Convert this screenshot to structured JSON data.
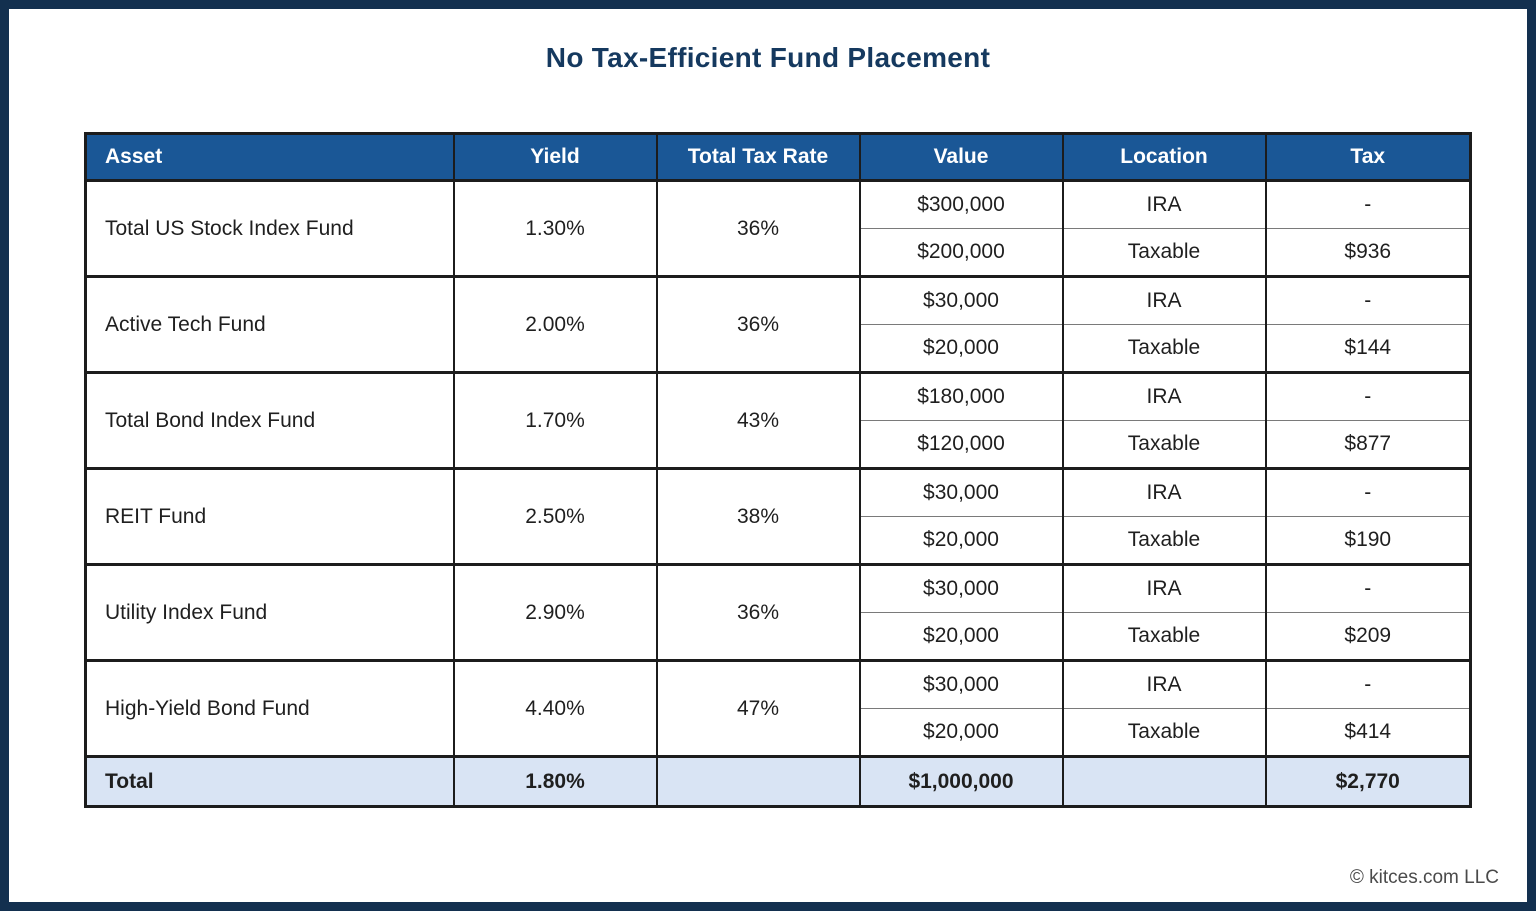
{
  "title": "No Tax-Efficient Fund Placement",
  "footer": {
    "copyright": "© kitces.com LLC"
  },
  "colors": {
    "frame_navy": "#13304F",
    "header_blue": "#1A5796",
    "total_row_bg": "#D9E4F4",
    "title_navy": "#15395F",
    "subrow_divider_gray": "#7a7a7a"
  },
  "table": {
    "headers": {
      "asset": "Asset",
      "yield": "Yield",
      "tax_rate": "Total Tax Rate",
      "value": "Value",
      "location": "Location",
      "tax": "Tax"
    },
    "rows": [
      {
        "asset": "Total US Stock Index Fund",
        "yield": "1.30%",
        "tax_rate": "36%",
        "sub": [
          {
            "value": "$300,000",
            "location": "IRA",
            "tax": "-"
          },
          {
            "value": "$200,000",
            "location": "Taxable",
            "tax": "$936"
          }
        ]
      },
      {
        "asset": "Active Tech Fund",
        "yield": "2.00%",
        "tax_rate": "36%",
        "sub": [
          {
            "value": "$30,000",
            "location": "IRA",
            "tax": "-"
          },
          {
            "value": "$20,000",
            "location": "Taxable",
            "tax": "$144"
          }
        ]
      },
      {
        "asset": "Total Bond Index Fund",
        "yield": "1.70%",
        "tax_rate": "43%",
        "sub": [
          {
            "value": "$180,000",
            "location": "IRA",
            "tax": "-"
          },
          {
            "value": "$120,000",
            "location": "Taxable",
            "tax": "$877"
          }
        ]
      },
      {
        "asset": "REIT Fund",
        "yield": "2.50%",
        "tax_rate": "38%",
        "sub": [
          {
            "value": "$30,000",
            "location": "IRA",
            "tax": "-"
          },
          {
            "value": "$20,000",
            "location": "Taxable",
            "tax": "$190"
          }
        ]
      },
      {
        "asset": "Utility Index Fund",
        "yield": "2.90%",
        "tax_rate": "36%",
        "sub": [
          {
            "value": "$30,000",
            "location": "IRA",
            "tax": "-"
          },
          {
            "value": "$20,000",
            "location": "Taxable",
            "tax": "$209"
          }
        ]
      },
      {
        "asset": "High-Yield Bond Fund",
        "yield": "4.40%",
        "tax_rate": "47%",
        "sub": [
          {
            "value": "$30,000",
            "location": "IRA",
            "tax": "-"
          },
          {
            "value": "$20,000",
            "location": "Taxable",
            "tax": "$414"
          }
        ]
      }
    ],
    "total": {
      "label": "Total",
      "yield": "1.80%",
      "tax_rate": "",
      "value": "$1,000,000",
      "location": "",
      "tax": "$2,770"
    }
  },
  "chart_data": {
    "type": "table",
    "title": "No Tax-Efficient Fund Placement",
    "columns": [
      "Asset",
      "Yield",
      "Total Tax Rate",
      "Value",
      "Location",
      "Tax"
    ],
    "rows": [
      [
        "Total US Stock Index Fund",
        "1.30%",
        "36%",
        "$300,000",
        "IRA",
        "-"
      ],
      [
        "Total US Stock Index Fund",
        "1.30%",
        "36%",
        "$200,000",
        "Taxable",
        "$936"
      ],
      [
        "Active Tech Fund",
        "2.00%",
        "36%",
        "$30,000",
        "IRA",
        "-"
      ],
      [
        "Active Tech Fund",
        "2.00%",
        "36%",
        "$20,000",
        "Taxable",
        "$144"
      ],
      [
        "Total Bond Index Fund",
        "1.70%",
        "43%",
        "$180,000",
        "IRA",
        "-"
      ],
      [
        "Total Bond Index Fund",
        "1.70%",
        "43%",
        "$120,000",
        "Taxable",
        "$877"
      ],
      [
        "REIT Fund",
        "2.50%",
        "38%",
        "$30,000",
        "IRA",
        "-"
      ],
      [
        "REIT Fund",
        "2.50%",
        "38%",
        "$20,000",
        "Taxable",
        "$190"
      ],
      [
        "Utility Index Fund",
        "2.90%",
        "36%",
        "$30,000",
        "IRA",
        "-"
      ],
      [
        "Utility Index Fund",
        "2.90%",
        "36%",
        "$20,000",
        "Taxable",
        "$209"
      ],
      [
        "High-Yield Bond Fund",
        "4.40%",
        "47%",
        "$30,000",
        "IRA",
        "-"
      ],
      [
        "High-Yield Bond Fund",
        "4.40%",
        "47%",
        "$20,000",
        "Taxable",
        "$414"
      ]
    ],
    "total_row": [
      "Total",
      "1.80%",
      "",
      "$1,000,000",
      "",
      "$2,770"
    ]
  }
}
